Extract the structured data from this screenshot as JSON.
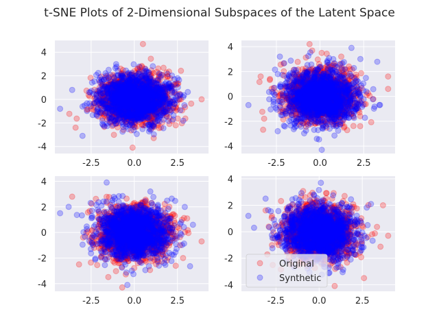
{
  "figure": {
    "title": "t-SNE Plots of 2-Dimensional Subspaces of the Latent Space"
  },
  "colors": {
    "axes_background": "#EAEAF2",
    "grid": "#FFFFFF",
    "original": "#FF0000",
    "synthetic": "#0000FF"
  },
  "legend": {
    "placement": "lower-left of bottom-right subplot",
    "entries": [
      "Original",
      "Synthetic"
    ]
  },
  "chart_data": [
    {
      "type": "scatter",
      "subplot": "top-left",
      "title": "",
      "xlabel": "",
      "ylabel": "",
      "grid": true,
      "xlim": [
        -4.6,
        4.3
      ],
      "ylim": [
        -4.6,
        5.0
      ],
      "xticks": [
        "-2.5",
        "0.0",
        "2.5"
      ],
      "yticks": [
        "4",
        "2",
        "0",
        "-2",
        "-4"
      ],
      "series": [
        {
          "name": "Original",
          "color": "#FF0000",
          "alpha": 0.25,
          "distribution": "approx. standard normal cloud",
          "center": [
            0,
            0
          ],
          "std": [
            1,
            1
          ],
          "range_x": [
            -3.8,
            4.0
          ],
          "range_y": [
            -4.1,
            4.7
          ],
          "outliers": [
            [
              0.5,
              4.7
            ],
            [
              -0.1,
              -4.1
            ],
            [
              3.9,
              0.0
            ],
            [
              -3.4,
              -2.4
            ],
            [
              2.4,
              -2.2
            ]
          ]
        },
        {
          "name": "Synthetic",
          "color": "#0000FF",
          "alpha": 0.25,
          "distribution": "approx. standard normal cloud",
          "center": [
            0,
            0
          ],
          "std": [
            1,
            1
          ],
          "range_x": [
            -4.3,
            3.7
          ],
          "range_y": [
            -3.6,
            3.5
          ],
          "outliers": [
            [
              -4.3,
              -0.8
            ],
            [
              -3.0,
              -3.1
            ],
            [
              2.9,
              -0.5
            ],
            [
              -3.6,
              0.8
            ]
          ]
        }
      ]
    },
    {
      "type": "scatter",
      "subplot": "top-right",
      "title": "",
      "xlabel": "",
      "ylabel": "",
      "grid": true,
      "xlim": [
        -4.5,
        4.3
      ],
      "ylim": [
        -4.6,
        4.5
      ],
      "xticks": [
        "-2.5",
        "0.0",
        "2.5"
      ],
      "yticks": [
        "4",
        "2",
        "0",
        "-2",
        "-4"
      ],
      "series": [
        {
          "name": "Original",
          "color": "#FF0000",
          "alpha": 0.25,
          "distribution": "approx. standard normal cloud",
          "center": [
            0,
            0
          ],
          "std": [
            1,
            1
          ],
          "range_x": [
            -3.6,
            4.0
          ],
          "range_y": [
            -3.9,
            4.2
          ],
          "outliers": [
            [
              -0.6,
              4.2
            ],
            [
              3.9,
              1.6
            ],
            [
              3.9,
              0.6
            ],
            [
              -3.2,
              -1.8
            ],
            [
              2.3,
              -2.4
            ],
            [
              -3.4,
              1.6
            ]
          ]
        },
        {
          "name": "Synthetic",
          "color": "#0000FF",
          "alpha": 0.25,
          "distribution": "approx. standard normal cloud",
          "center": [
            0,
            0
          ],
          "std": [
            1,
            1
          ],
          "range_x": [
            -4.1,
            3.8
          ],
          "range_y": [
            -4.3,
            3.9
          ],
          "outliers": [
            [
              -4.1,
              -0.7
            ],
            [
              1.8,
              3.9
            ],
            [
              0.1,
              -4.3
            ],
            [
              3.4,
              -0.7
            ],
            [
              -2.3,
              3.2
            ]
          ]
        }
      ]
    },
    {
      "type": "scatter",
      "subplot": "bottom-left",
      "title": "",
      "xlabel": "",
      "ylabel": "",
      "grid": true,
      "xlim": [
        -4.6,
        4.3
      ],
      "ylim": [
        -4.6,
        4.4
      ],
      "xticks": [
        "-2.5",
        "0.0",
        "2.5"
      ],
      "yticks": [
        "4",
        "2",
        "0",
        "-2",
        "-4"
      ],
      "series": [
        {
          "name": "Original",
          "color": "#FF0000",
          "alpha": 0.25,
          "distribution": "approx. standard normal cloud",
          "center": [
            0,
            0
          ],
          "std": [
            1,
            1
          ],
          "range_x": [
            -3.6,
            4.0
          ],
          "range_y": [
            -4.3,
            3.6
          ],
          "outliers": [
            [
              3.9,
              -0.7
            ],
            [
              -3.6,
              2.8
            ],
            [
              -0.7,
              -4.3
            ],
            [
              2.4,
              -2.6
            ],
            [
              -3.2,
              -2.5
            ]
          ]
        },
        {
          "name": "Synthetic",
          "color": "#0000FF",
          "alpha": 0.25,
          "distribution": "approx. standard normal cloud",
          "center": [
            0,
            0
          ],
          "std": [
            1,
            1
          ],
          "range_x": [
            -4.3,
            3.7
          ],
          "range_y": [
            -4.1,
            4.0
          ],
          "outliers": [
            [
              -4.3,
              1.5
            ],
            [
              -1.6,
              3.9
            ],
            [
              -0.4,
              -4.1
            ],
            [
              3.4,
              0.6
            ],
            [
              -3.8,
              2.0
            ]
          ]
        }
      ]
    },
    {
      "type": "scatter",
      "subplot": "bottom-right",
      "title": "",
      "xlabel": "",
      "ylabel": "",
      "grid": true,
      "xlim": [
        -4.5,
        4.4
      ],
      "ylim": [
        -4.5,
        4.2
      ],
      "xticks": [
        "-2.5",
        "0.0",
        "2.5"
      ],
      "yticks": [
        "4",
        "2",
        "0",
        "-2",
        "-4"
      ],
      "legend": true,
      "series": [
        {
          "name": "Original",
          "color": "#FF0000",
          "alpha": 0.25,
          "distribution": "approx. standard normal cloud",
          "center": [
            0,
            0
          ],
          "std": [
            1,
            1
          ],
          "range_x": [
            -3.4,
            4.1
          ],
          "range_y": [
            -4.1,
            3.6
          ],
          "outliers": [
            [
              4.0,
              -0.3
            ],
            [
              0.9,
              -4.1
            ],
            [
              2.6,
              -3.5
            ],
            [
              3.7,
              2.0
            ]
          ]
        },
        {
          "name": "Synthetic",
          "color": "#0000FF",
          "alpha": 0.25,
          "distribution": "approx. standard normal cloud",
          "center": [
            0,
            0
          ],
          "std": [
            1,
            1
          ],
          "range_x": [
            -4.1,
            3.7
          ],
          "range_y": [
            -3.8,
            3.7
          ],
          "outliers": [
            [
              -4.1,
              1.2
            ],
            [
              0.1,
              3.7
            ],
            [
              3.0,
              2.1
            ],
            [
              -3.1,
              2.5
            ]
          ]
        }
      ]
    }
  ]
}
